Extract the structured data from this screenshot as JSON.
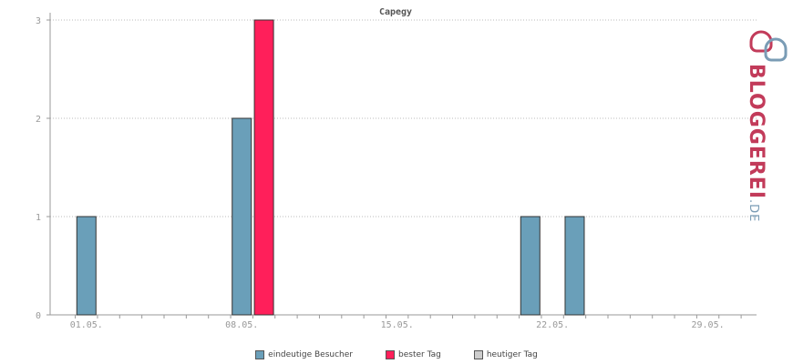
{
  "chart_data": {
    "type": "bar",
    "title": "Capegy",
    "x_tick_labels": [
      "01.05.",
      "08.05.",
      "15.05.",
      "22.05.",
      "29.05."
    ],
    "ylim": [
      0,
      3
    ],
    "y_ticks": [
      0,
      1,
      2,
      3
    ],
    "grid": true,
    "series": [
      {
        "name": "eindeutige Besucher",
        "color": "#6a9fb9",
        "points": [
          {
            "date": "2024-05-01",
            "value": 1
          },
          {
            "date": "2024-05-08",
            "value": 2
          },
          {
            "date": "2024-05-21",
            "value": 1
          },
          {
            "date": "2024-05-23",
            "value": 1
          }
        ]
      },
      {
        "name": "bester Tag",
        "color": "#ff1f5a",
        "points": [
          {
            "date": "2024-05-09",
            "value": 3
          }
        ]
      },
      {
        "name": "heutiger Tag",
        "color": "#cccccc",
        "points": []
      }
    ]
  },
  "logo": {
    "text": "BLOGGEREI",
    "suffix": ".DE"
  }
}
